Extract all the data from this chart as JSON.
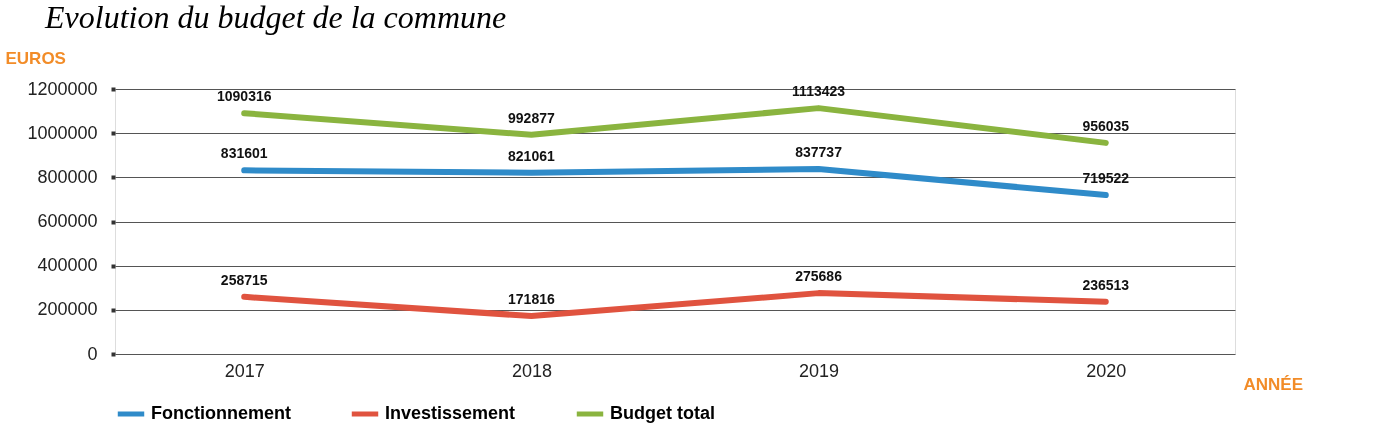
{
  "chart_data": {
    "type": "line",
    "title": "Evolution du budget de la commune",
    "xlabel": "ANNÉE",
    "ylabel": "EUROS",
    "categories": [
      "2017",
      "2018",
      "2019",
      "2020"
    ],
    "series": [
      {
        "name": "Fonctionnement",
        "color": "#2f8bc9",
        "values": [
          831601,
          821061,
          837737,
          719522
        ]
      },
      {
        "name": "Investissement",
        "color": "#e0533f",
        "values": [
          258715,
          171816,
          275686,
          236513
        ]
      },
      {
        "name": "Budget total",
        "color": "#8ab43f",
        "values": [
          1090316,
          992877,
          1113423,
          956035
        ]
      }
    ],
    "ylim": [
      0,
      1200000
    ],
    "yticks": [
      0,
      200000,
      400000,
      600000,
      800000,
      1000000,
      1200000
    ],
    "grid": "y",
    "legend": "bottom",
    "data_labels": true,
    "marker": "none",
    "line_style": "solid"
  }
}
